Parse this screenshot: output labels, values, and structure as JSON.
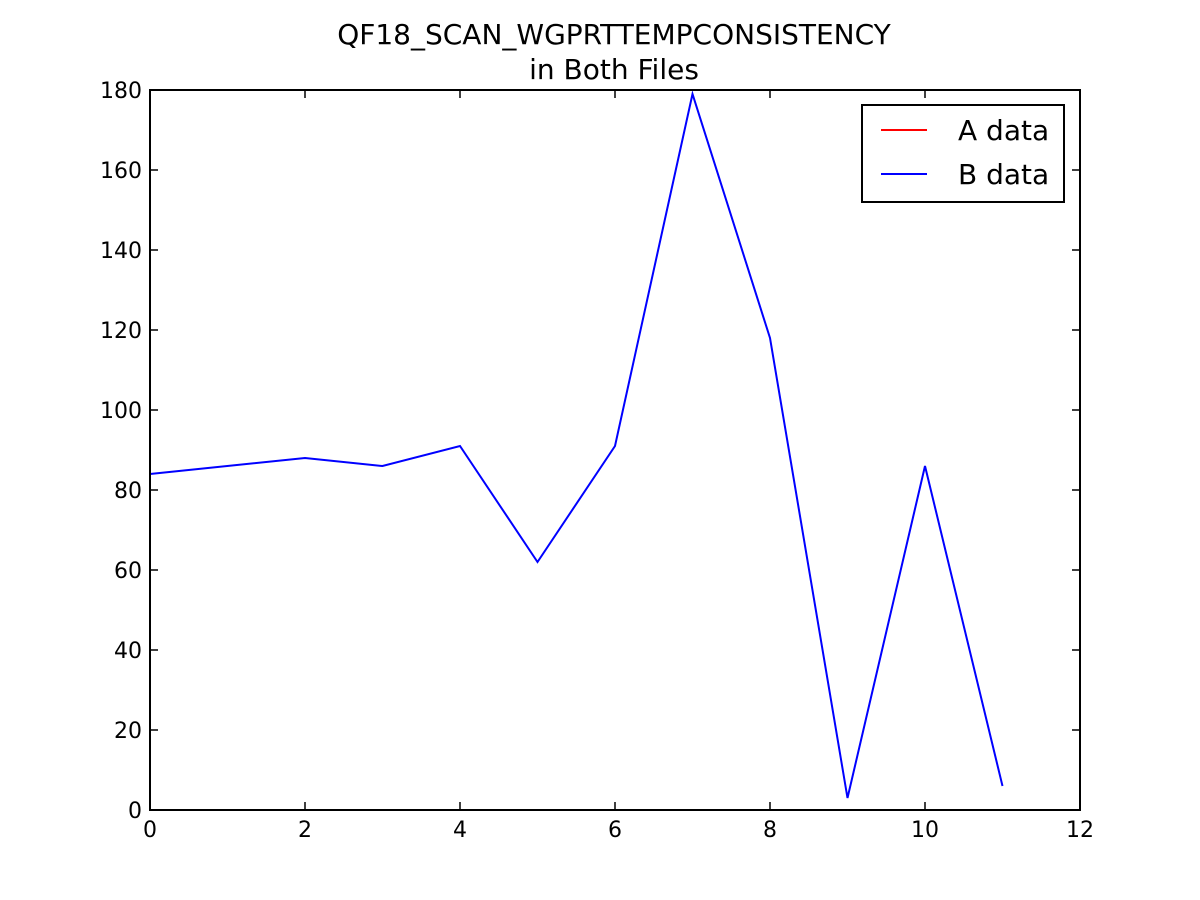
{
  "chart_data": {
    "type": "line",
    "title": "QF18_SCAN_WGPRTTEMPCONSISTENCY",
    "subtitle": "in Both Files",
    "xlabel": "",
    "ylabel": "",
    "xlim": [
      0,
      12
    ],
    "ylim": [
      0,
      180
    ],
    "x_ticks": [
      "0",
      "2",
      "4",
      "6",
      "8",
      "10",
      "12"
    ],
    "y_ticks": [
      "0",
      "20",
      "40",
      "60",
      "80",
      "100",
      "120",
      "140",
      "160",
      "180"
    ],
    "grid": false,
    "legend_position": "top-right",
    "series": [
      {
        "name": "A data",
        "color": "#ff0000",
        "x": [],
        "values": []
      },
      {
        "name": "B data",
        "color": "#0000ff",
        "x": [
          0,
          2,
          3,
          4,
          5,
          6,
          7,
          8,
          9,
          10,
          11
        ],
        "values": [
          84,
          88,
          86,
          91,
          62,
          91,
          179,
          118,
          3,
          86,
          6
        ]
      }
    ]
  }
}
